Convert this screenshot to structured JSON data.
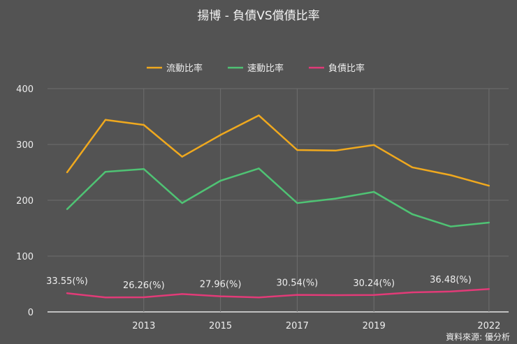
{
  "chart_data": {
    "type": "line",
    "title": "揚博 - 負債VS償債比率",
    "source": "資料來源: 優分析",
    "x": [
      2011,
      2012,
      2013,
      2014,
      2015,
      2016,
      2017,
      2018,
      2019,
      2020,
      2021,
      2022
    ],
    "x_tick_labels": [
      "2013",
      "2015",
      "2017",
      "2019",
      "2022"
    ],
    "y_tick_labels": [
      "0",
      "100",
      "200",
      "300",
      "400"
    ],
    "ylim": [
      0,
      400
    ],
    "grid": true,
    "legend_position": "top",
    "series": [
      {
        "name": "流動比率",
        "color": "#f0a91e",
        "values": [
          250,
          344,
          335,
          278,
          317,
          352,
          290,
          289,
          299,
          259,
          245,
          226
        ]
      },
      {
        "name": "速動比率",
        "color": "#4fc374",
        "values": [
          184,
          251,
          256,
          195,
          235,
          257,
          195,
          203,
          215,
          175,
          153,
          160
        ]
      },
      {
        "name": "負債比率",
        "color": "#e23b78",
        "values": [
          33.55,
          26,
          26.26,
          32,
          27.96,
          26,
          30.54,
          30,
          30.24,
          35,
          36.48,
          41
        ]
      }
    ],
    "data_labels": [
      {
        "x": 2011,
        "text": "33.55(%)"
      },
      {
        "x": 2013,
        "text": "26.26(%)"
      },
      {
        "x": 2015,
        "text": "27.96(%)"
      },
      {
        "x": 2017,
        "text": "30.54(%)"
      },
      {
        "x": 2019,
        "text": "30.24(%)"
      },
      {
        "x": 2021,
        "text": "36.48(%)"
      }
    ]
  }
}
